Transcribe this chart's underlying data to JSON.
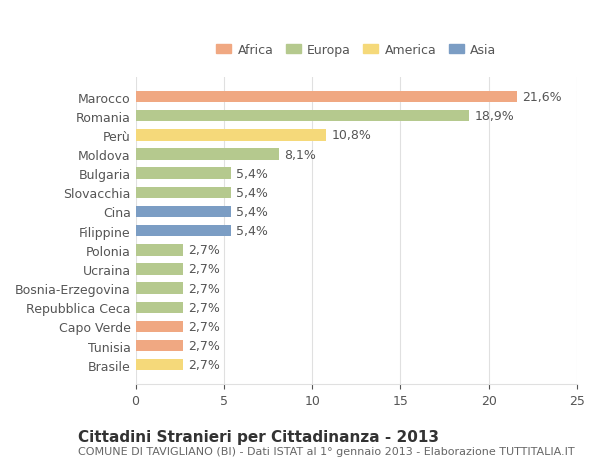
{
  "countries": [
    "Marocco",
    "Romania",
    "Perù",
    "Moldova",
    "Bulgaria",
    "Slovacchia",
    "Cina",
    "Filippine",
    "Polonia",
    "Ucraina",
    "Bosnia-Erzegovina",
    "Repubblica Ceca",
    "Capo Verde",
    "Tunisia",
    "Brasile"
  ],
  "values": [
    21.6,
    18.9,
    10.8,
    8.1,
    5.4,
    5.4,
    5.4,
    5.4,
    2.7,
    2.7,
    2.7,
    2.7,
    2.7,
    2.7,
    2.7
  ],
  "labels": [
    "21,6%",
    "18,9%",
    "10,8%",
    "8,1%",
    "5,4%",
    "5,4%",
    "5,4%",
    "5,4%",
    "2,7%",
    "2,7%",
    "2,7%",
    "2,7%",
    "2,7%",
    "2,7%",
    "2,7%"
  ],
  "continents": [
    "Africa",
    "Europa",
    "America",
    "Europa",
    "Europa",
    "Europa",
    "Asia",
    "Asia",
    "Europa",
    "Europa",
    "Europa",
    "Europa",
    "Africa",
    "Africa",
    "America"
  ],
  "colors": {
    "Africa": "#F0A882",
    "Europa": "#B5C98E",
    "America": "#F5D97A",
    "Asia": "#7B9DC4"
  },
  "legend_order": [
    "Africa",
    "Europa",
    "America",
    "Asia"
  ],
  "title": "Cittadini Stranieri per Cittadinanza - 2013",
  "subtitle": "COMUNE DI TAVIGLIANO (BI) - Dati ISTAT al 1° gennaio 2013 - Elaborazione TUTTITALIA.IT",
  "xlim": [
    0,
    25
  ],
  "xticks": [
    0,
    5,
    10,
    15,
    20,
    25
  ],
  "background_color": "#ffffff",
  "grid_color": "#e0e0e0",
  "bar_height": 0.6,
  "label_fontsize": 9,
  "tick_fontsize": 9,
  "title_fontsize": 11,
  "subtitle_fontsize": 8
}
